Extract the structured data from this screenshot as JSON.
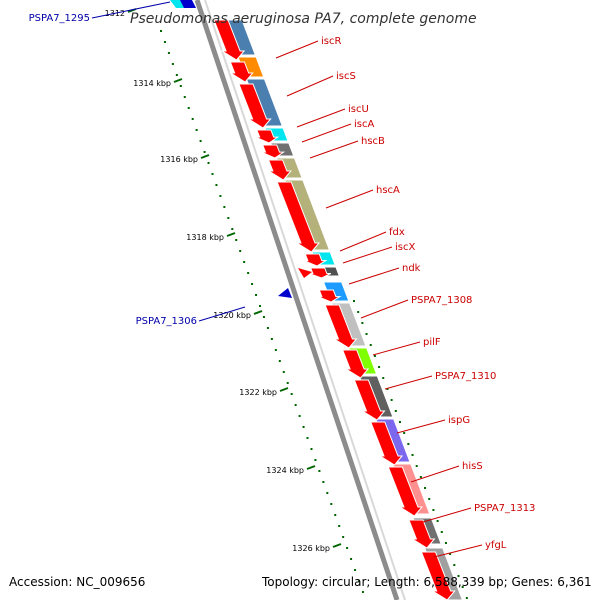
{
  "title": "Pseudomonas aeruginosa PA7, complete genome",
  "footer": {
    "accession": "Accession: NC_009656",
    "topology": "Topology: circular; Length: 6,588,339 bp; Genes: 6,361"
  },
  "colors": {
    "backbone": "#808080",
    "forward_gene": "#ff0000",
    "reverse_gene": "#0000cc",
    "red_label": "#cc0000",
    "blue_label": "#0000aa",
    "tick": "#006600"
  },
  "ticks": [
    {
      "label": "1312"
    },
    {
      "label": "1314 kbp"
    },
    {
      "label": "1316 kbp"
    },
    {
      "label": "1318 kbp"
    },
    {
      "label": "1320 kbp"
    },
    {
      "label": "1322 kbp"
    },
    {
      "label": "1324 kbp"
    },
    {
      "label": "1326 kbp"
    }
  ],
  "red_genes": [
    {
      "label": "iscR"
    },
    {
      "label": "iscS"
    },
    {
      "label": "iscU"
    },
    {
      "label": "iscA"
    },
    {
      "label": "hscB"
    },
    {
      "label": "hscA"
    },
    {
      "label": "fdx"
    },
    {
      "label": "iscX"
    },
    {
      "label": "ndk"
    },
    {
      "label": "PSPA7_1308"
    },
    {
      "label": "pilF"
    },
    {
      "label": "PSPA7_1310"
    },
    {
      "label": "ispG"
    },
    {
      "label": "hisS"
    },
    {
      "label": "PSPA7_1313"
    },
    {
      "label": "yfgL"
    }
  ],
  "blue_genes": [
    {
      "label": "PSPA7_1295"
    },
    {
      "label": "PSPA7_1306"
    }
  ],
  "cog_blocks": [
    {
      "color": "#4a7fb0"
    },
    {
      "color": "#ff8c00"
    },
    {
      "color": "#4a7fb0"
    },
    {
      "color": "#00e5ee"
    },
    {
      "color": "#707070"
    },
    {
      "color": "#b5b17a"
    },
    {
      "color": "#b5b17a"
    },
    {
      "color": "#00e5ee"
    },
    {
      "color": "#505050"
    },
    {
      "color": "#1e9bff"
    },
    {
      "color": "#c0c0c0"
    },
    {
      "color": "#7fff00"
    },
    {
      "color": "#606060"
    },
    {
      "color": "#7b68ee"
    },
    {
      "color": "#ff9090"
    },
    {
      "color": "#707070"
    },
    {
      "color": "#a0a0a0"
    }
  ]
}
